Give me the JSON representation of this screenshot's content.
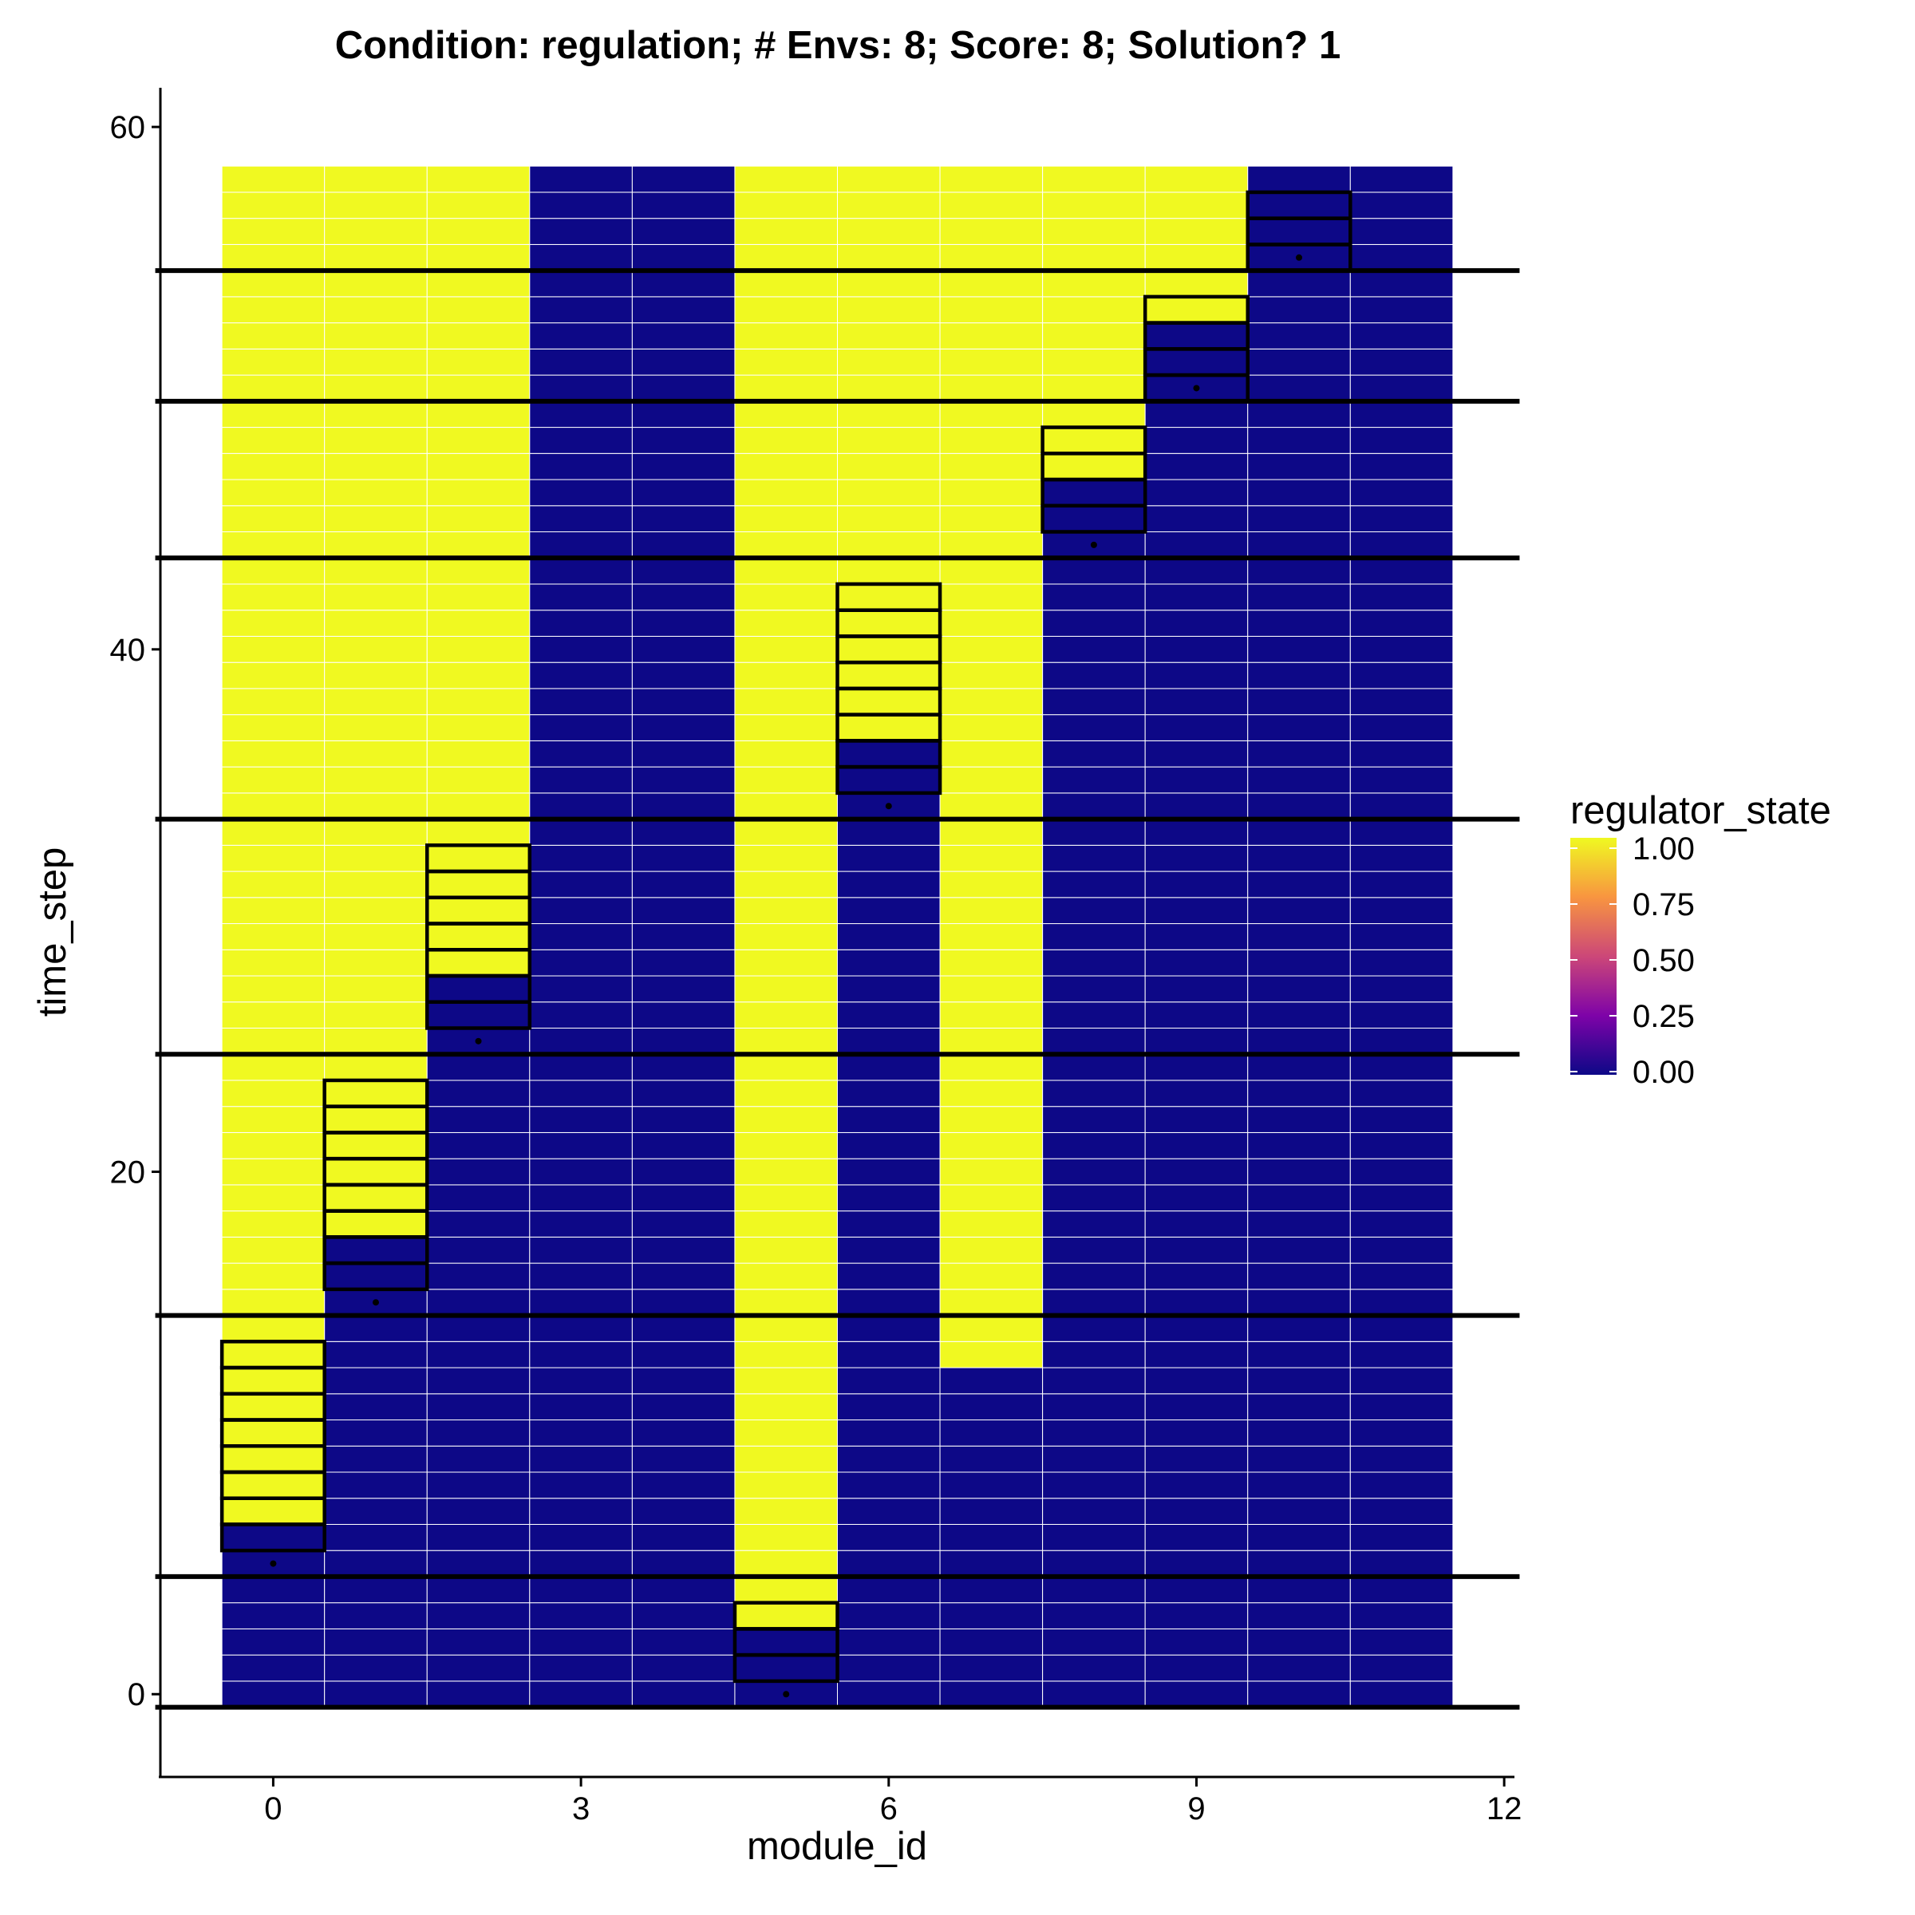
{
  "chart_data": {
    "type": "heatmap",
    "title": "Condition: regulation; # Envs: 8; Score: 8; Solution? 1",
    "xlabel": "module_id",
    "ylabel": "time_step",
    "x_ticks": [
      0,
      3,
      6,
      9,
      12
    ],
    "y_ticks": [
      0,
      20,
      40,
      60
    ],
    "xlim": [
      -1.1,
      12.1
    ],
    "ylim": [
      -3.2,
      61.5
    ],
    "modules": [
      0,
      1,
      2,
      3,
      4,
      5,
      6,
      7,
      8,
      9,
      10,
      11
    ],
    "time_steps": {
      "start": 0,
      "end": 58
    },
    "regulator_state_on_ranges": [
      {
        "module": 0,
        "from": 7,
        "to": 58
      },
      {
        "module": 1,
        "from": 18,
        "to": 58
      },
      {
        "module": 2,
        "from": 28,
        "to": 58
      },
      {
        "module": 3,
        "from": null,
        "to": null
      },
      {
        "module": 4,
        "from": null,
        "to": null
      },
      {
        "module": 5,
        "from": 3,
        "to": 58
      },
      {
        "module": 6,
        "from": 37,
        "to": 58
      },
      {
        "module": 7,
        "from": 13,
        "to": 58
      },
      {
        "module": 8,
        "from": 47,
        "to": 58
      },
      {
        "module": 9,
        "from": 53,
        "to": 58
      },
      {
        "module": 10,
        "from": null,
        "to": null
      },
      {
        "module": 11,
        "from": null,
        "to": null
      }
    ],
    "env_change_lines": [
      -0.5,
      4.5,
      14.5,
      24.5,
      33.5,
      43.5,
      49.5,
      54.5
    ],
    "highlight_boxes": [
      {
        "module": 0,
        "from": 6,
        "to": 13
      },
      {
        "module": 1,
        "from": 16,
        "to": 23
      },
      {
        "module": 2,
        "from": 26,
        "to": 32
      },
      {
        "module": 5,
        "from": 1,
        "to": 3
      },
      {
        "module": 6,
        "from": 35,
        "to": 42
      },
      {
        "module": 8,
        "from": 45,
        "to": 48
      },
      {
        "module": 9,
        "from": 50,
        "to": 53
      },
      {
        "module": 10,
        "from": 55,
        "to": 57
      }
    ],
    "points": [
      {
        "x": 0,
        "y": 5
      },
      {
        "x": 1,
        "y": 15
      },
      {
        "x": 2,
        "y": 25
      },
      {
        "x": 5,
        "y": 0
      },
      {
        "x": 6,
        "y": 34
      },
      {
        "x": 8,
        "y": 44
      },
      {
        "x": 9,
        "y": 50
      },
      {
        "x": 10,
        "y": 55
      }
    ],
    "legend": {
      "title": "regulator_state",
      "position": "right",
      "labels": [
        "1.00",
        "0.75",
        "0.50",
        "0.25",
        "0.00"
      ],
      "values": [
        1.0,
        0.75,
        0.5,
        0.25,
        0.0
      ]
    },
    "colors": {
      "low": "#0d0887",
      "high": "#f0f921",
      "gradient": [
        "#0d0887",
        "#7e03a8",
        "#cc4778",
        "#f89540",
        "#f0f921"
      ],
      "outline": "#000000",
      "cell_border": "#ffffff"
    },
    "grid": false
  }
}
